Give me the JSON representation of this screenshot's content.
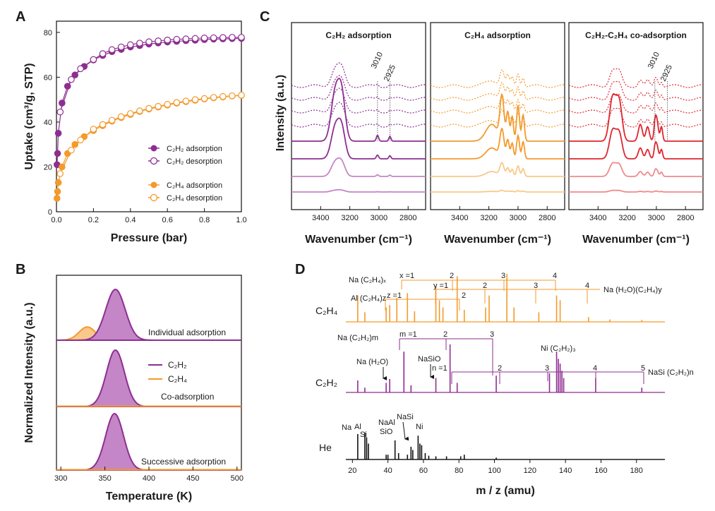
{
  "colors": {
    "purple": "#8e2e92",
    "purple_light": "#c486c6",
    "orange": "#f39a2b",
    "orange_light": "#f8c98a",
    "red": "#e0262d",
    "red_light": "#ef8a8d",
    "black": "#111111"
  },
  "panels": {
    "a": "A",
    "b": "B",
    "c": "C",
    "d": "D"
  },
  "chart_data": [
    {
      "id": "A",
      "type": "scatter",
      "xlabel": "Pressure (bar)",
      "ylabel": "Uptake (cm³/g, STP)",
      "xlim": [
        0,
        1
      ],
      "ylim": [
        0,
        85
      ],
      "xticks": [
        "0.0",
        "0.2",
        "0.4",
        "0.6",
        "0.8",
        "1.0"
      ],
      "yticks": [
        "0",
        "20",
        "40",
        "60",
        "80"
      ],
      "legend": {
        "position": "center-right",
        "c2h2_ads": "C₂H₂ adsorption",
        "c2h2_des": "C₂H₂ desorption",
        "c2h4_ads": "C₂H₄ adsorption",
        "c2h4_des": "C₂H₄ desorption"
      },
      "series": [
        {
          "name": "C₂H₂ adsorption",
          "x": [
            0.003,
            0.006,
            0.01,
            0.03,
            0.06,
            0.1,
            0.15,
            0.2,
            0.25,
            0.3,
            0.35,
            0.4,
            0.45,
            0.5,
            0.55,
            0.6,
            0.65,
            0.7,
            0.75,
            0.8,
            0.85,
            0.9,
            0.95,
            1.0
          ],
          "y": [
            21,
            26,
            35,
            48.5,
            56,
            61,
            64.8,
            67.7,
            69.7,
            71.4,
            72.4,
            73.5,
            74.1,
            74.8,
            75.3,
            75.7,
            76.0,
            76.3,
            76.5,
            76.8,
            77.0,
            77.1,
            77.2,
            77.3
          ]
        },
        {
          "name": "C₂H₂ desorption",
          "x": [
            0.02,
            0.08,
            0.13,
            0.2,
            0.25,
            0.3,
            0.35,
            0.4,
            0.45,
            0.5,
            0.55,
            0.6,
            0.65,
            0.7,
            0.75,
            0.8,
            0.85,
            0.9,
            0.95,
            1.0
          ],
          "y": [
            44.5,
            59,
            63.8,
            67.9,
            70.5,
            72.3,
            73.5,
            74.5,
            75.2,
            75.8,
            76.2,
            76.6,
            76.9,
            77.1,
            77.3,
            77.5,
            77.6,
            77.7,
            77.8,
            77.8
          ]
        },
        {
          "name": "C₂H₄ adsorption",
          "x": [
            0.003,
            0.006,
            0.01,
            0.03,
            0.06,
            0.1,
            0.15,
            0.2,
            0.25,
            0.3,
            0.35,
            0.4,
            0.45,
            0.5,
            0.55,
            0.6,
            0.65,
            0.7,
            0.75,
            0.8,
            0.85,
            0.9,
            0.95,
            1.0
          ],
          "y": [
            6,
            9,
            13,
            20,
            26,
            30,
            33.5,
            36.2,
            38.4,
            40.4,
            42,
            43.4,
            44.7,
            45.8,
            46.7,
            47.6,
            48.4,
            49.1,
            49.7,
            50.3,
            50.8,
            51.2,
            51.6,
            51.9
          ]
        },
        {
          "name": "C₂H₄ desorption",
          "x": [
            0.02,
            0.08,
            0.13,
            0.2,
            0.25,
            0.3,
            0.35,
            0.4,
            0.45,
            0.5,
            0.55,
            0.6,
            0.65,
            0.7,
            0.75,
            0.8,
            0.85,
            0.9,
            0.95,
            1.0
          ],
          "y": [
            17,
            27.5,
            32,
            36.8,
            38.9,
            40.8,
            42.4,
            43.8,
            45,
            46.1,
            47,
            47.9,
            48.7,
            49.4,
            50,
            50.5,
            51,
            51.4,
            51.7,
            52
          ]
        }
      ]
    },
    {
      "id": "B",
      "type": "area",
      "xlabel": "Temperature (K)",
      "ylabel": "Normalized Intensity (a.u.)",
      "xlim": [
        295,
        505
      ],
      "xticks": [
        "300",
        "350",
        "400",
        "450",
        "500"
      ],
      "legend": {
        "c2h2": "C₂H₂",
        "c2h4": "C₂H₄"
      },
      "subpanels": [
        {
          "label": "Individual adsorption",
          "peaks": [
            {
              "series": "C₂H₂",
              "center": 362,
              "fwhm": 26,
              "height": 1.0
            },
            {
              "series": "C₂H₄",
              "center": 330,
              "fwhm": 22,
              "height": 0.26
            }
          ]
        },
        {
          "label": "Co-adsorption",
          "peaks": [
            {
              "series": "C₂H₂",
              "center": 362,
              "fwhm": 24,
              "height": 1.0
            }
          ]
        },
        {
          "label": "Successive adsorption",
          "peaks": [
            {
              "series": "C₂H₂",
              "center": 361,
              "fwhm": 24,
              "height": 1.0
            }
          ]
        }
      ]
    },
    {
      "id": "C",
      "type": "line",
      "ylabel": "Intensity (a.u.)",
      "subpanels": [
        {
          "title": "C₂H₂ adsorption",
          "xlabel": "Wavenumber (cm⁻¹)",
          "xlim": [
            3600,
            2680
          ],
          "xticks": [
            "3400",
            "3200",
            "3000",
            "2800"
          ],
          "annotations": [
            "3010",
            "2925"
          ]
        },
        {
          "title": "C₂H₄ adsorption",
          "xlabel": "Wavenumber (cm⁻¹)",
          "xlim": [
            3600,
            2680
          ],
          "xticks": [
            "3400",
            "3200",
            "3000",
            "2800"
          ],
          "annotations": []
        },
        {
          "title": "C₂H₂-C₂H₄ co-adsorption",
          "xlabel": "Wavenumber (cm⁻¹)",
          "xlim": [
            3600,
            2680
          ],
          "xticks": [
            "3400",
            "3200",
            "3000",
            "2800"
          ],
          "annotations": [
            "3010",
            "2925"
          ]
        }
      ]
    },
    {
      "id": "D",
      "type": "line",
      "xlabel": "m / z (amu)",
      "xlim": [
        0,
        196
      ],
      "xticks": [
        "20",
        "40",
        "60",
        "80",
        "100",
        "120",
        "140",
        "160",
        "180"
      ],
      "traces": [
        {
          "name": "C₂H₄",
          "peaks": [
            [
              23,
              0.55
            ],
            [
              27,
              0.2
            ],
            [
              39,
              0.3
            ],
            [
              41,
              0.35
            ],
            [
              45,
              0.5
            ],
            [
              51,
              0.6
            ],
            [
              55,
              0.22
            ],
            [
              67,
              0.75
            ],
            [
              69,
              0.45
            ],
            [
              71,
              0.3
            ],
            [
              79,
              0.95
            ],
            [
              83,
              0.25
            ],
            [
              95,
              0.3
            ],
            [
              97,
              0.55
            ],
            [
              107,
              1.0
            ],
            [
              111,
              0.3
            ],
            [
              125,
              0.2
            ],
            [
              135,
              0.55
            ],
            [
              137,
              0.45
            ],
            [
              153,
              0.1
            ],
            [
              165,
              0.05
            ],
            [
              183,
              0.04
            ]
          ]
        },
        {
          "name": "C₂H₂",
          "peaks": [
            [
              23,
              0.25
            ],
            [
              27,
              0.1
            ],
            [
              39,
              0.2
            ],
            [
              41,
              0.28
            ],
            [
              49,
              0.85
            ],
            [
              53,
              0.15
            ],
            [
              67,
              0.3
            ],
            [
              75,
              1.0
            ],
            [
              79,
              0.2
            ],
            [
              101,
              0.35
            ],
            [
              131,
              0.4
            ],
            [
              135,
              0.85
            ],
            [
              136,
              0.7
            ],
            [
              137,
              0.6
            ],
            [
              138,
              0.45
            ],
            [
              139,
              0.3
            ],
            [
              157,
              0.3
            ],
            [
              183,
              0.1
            ]
          ]
        },
        {
          "name": "He",
          "peaks": [
            [
              23,
              0.8
            ],
            [
              27,
              0.85
            ],
            [
              28,
              0.7
            ],
            [
              29,
              0.5
            ],
            [
              39,
              0.15
            ],
            [
              40,
              0.15
            ],
            [
              44,
              0.6
            ],
            [
              46,
              0.2
            ],
            [
              51,
              0.15
            ],
            [
              53,
              0.4
            ],
            [
              54,
              0.3
            ],
            [
              57,
              0.75
            ],
            [
              58,
              0.5
            ],
            [
              59,
              0.45
            ],
            [
              61,
              0.2
            ],
            [
              63,
              0.12
            ],
            [
              67,
              0.1
            ],
            [
              73,
              0.1
            ],
            [
              81,
              0.1
            ],
            [
              83,
              0.15
            ],
            [
              101,
              0.06
            ]
          ]
        }
      ],
      "labels": {
        "na_c2h4x": "Na (C₂H₄)ₓ",
        "al_c2h4z": "Al (C₂H₄)z",
        "na_h2o_c2h4y": "Na (H₂O)(C₂H₄)y",
        "x1": "x =1",
        "z1": "z =1",
        "y1": "y =1",
        "n2a": "2",
        "n2b": "2",
        "n2c": "2",
        "n3a": "3",
        "n3b": "3",
        "n4a": "4",
        "n4b": "4",
        "na_c2h2m": "Na (C₂H₂)m",
        "m1": "m =1",
        "m2": "2",
        "m3": "3",
        "na_h2o": "Na (H₂O)",
        "nasio": "NaSiO",
        "ni_c2h2_3": "Ni (C₂H₂)₃",
        "n1": "n =1",
        "nn2": "2",
        "nn3": "3",
        "nn4": "4",
        "nn5": "5",
        "nasi_c2h2n": "NaSi (C₂H₂)n",
        "he_na": "Na",
        "he_al": "Al",
        "he_si": "Si",
        "he_naal": "NaAl",
        "he_sio": "SiO",
        "he_nasi": "NaSi",
        "he_ni": "Ni"
      }
    }
  ]
}
